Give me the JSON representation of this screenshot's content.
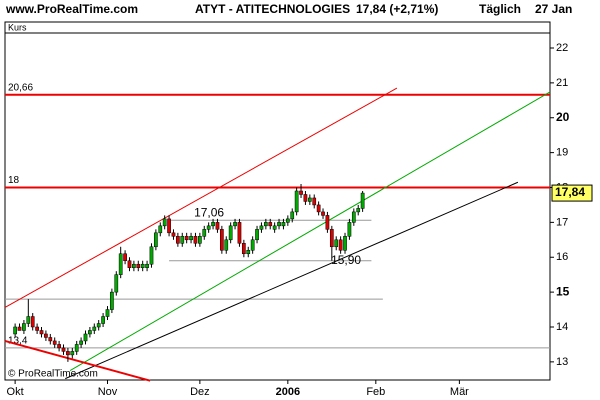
{
  "header": {
    "site": "www.ProRealTime.com",
    "instrument": "ATYT - ATITECHNOLOGIES",
    "quote": "17,84 (+2,71%)",
    "interval": "Täglich",
    "date": "27 Jan"
  },
  "chart_data": {
    "type": "candlestick",
    "panel_label": "Kurs",
    "copyright": "© ProRealTime.com",
    "up_color": "#00aa00",
    "down_color": "#dd0000",
    "x": [
      0,
      1,
      2,
      3,
      4,
      5,
      6,
      7,
      8,
      9,
      10,
      11,
      12,
      13,
      14,
      15,
      16,
      17,
      18,
      19,
      20,
      21,
      22,
      23,
      24,
      25,
      26,
      27,
      28,
      29,
      30,
      31,
      32,
      33,
      34,
      35,
      36,
      37,
      38,
      39,
      40,
      41,
      42,
      43,
      44,
      45,
      46,
      47,
      48,
      49,
      50,
      51,
      52,
      53,
      54,
      55,
      56,
      57,
      58,
      59,
      60,
      61,
      62,
      63,
      64,
      65,
      66,
      67,
      68,
      69,
      70,
      71,
      72,
      73,
      74,
      75,
      76,
      77,
      78,
      79
    ],
    "open": [
      13.8,
      14.0,
      13.9,
      14.1,
      14.3,
      14.0,
      13.9,
      13.8,
      13.7,
      13.6,
      13.5,
      13.4,
      13.3,
      13.2,
      13.3,
      13.5,
      13.6,
      13.8,
      13.9,
      14.0,
      14.1,
      14.3,
      14.5,
      15.0,
      15.5,
      16.1,
      15.9,
      15.7,
      15.8,
      15.7,
      15.7,
      15.8,
      16.3,
      16.7,
      16.9,
      17.1,
      16.7,
      16.6,
      16.4,
      16.6,
      16.5,
      16.6,
      16.4,
      16.6,
      16.8,
      16.9,
      17.0,
      16.8,
      16.2,
      16.5,
      16.9,
      17.0,
      16.4,
      16.1,
      16.2,
      16.5,
      16.8,
      16.9,
      17.0,
      16.8,
      16.9,
      16.9,
      17.0,
      17.1,
      17.3,
      17.9,
      17.8,
      17.6,
      17.7,
      17.5,
      17.3,
      17.2,
      16.8,
      16.3,
      16.5,
      16.2,
      16.6,
      17.0,
      17.3,
      17.4
    ],
    "high": [
      14.1,
      14.1,
      14.2,
      14.8,
      14.4,
      14.1,
      14.0,
      13.9,
      13.8,
      13.7,
      13.6,
      13.5,
      13.4,
      13.4,
      13.6,
      13.7,
      13.9,
      14.0,
      14.1,
      14.2,
      14.4,
      14.6,
      15.1,
      15.6,
      16.3,
      16.2,
      16.0,
      15.9,
      15.9,
      15.9,
      15.9,
      16.4,
      16.8,
      17.0,
      17.2,
      17.2,
      16.8,
      16.7,
      16.7,
      16.7,
      16.7,
      16.7,
      16.7,
      16.9,
      17.0,
      17.1,
      17.1,
      16.9,
      16.6,
      17.0,
      17.1,
      17.1,
      16.5,
      16.3,
      16.6,
      16.9,
      17.0,
      17.1,
      17.1,
      17.0,
      17.1,
      17.1,
      17.2,
      17.4,
      18.0,
      18.1,
      17.9,
      17.8,
      17.8,
      17.6,
      17.4,
      17.3,
      16.9,
      16.6,
      16.6,
      16.7,
      17.1,
      17.4,
      17.5,
      17.9
    ],
    "low": [
      13.7,
      13.9,
      13.8,
      14.0,
      13.9,
      13.8,
      13.7,
      13.6,
      13.5,
      13.4,
      13.3,
      13.2,
      13.0,
      13.1,
      13.2,
      13.4,
      13.5,
      13.7,
      13.8,
      13.9,
      14.0,
      14.2,
      14.4,
      14.9,
      15.4,
      15.8,
      15.6,
      15.6,
      15.6,
      15.6,
      15.6,
      15.7,
      16.2,
      16.6,
      16.8,
      16.6,
      16.5,
      16.3,
      16.3,
      16.4,
      16.4,
      16.3,
      16.3,
      16.5,
      16.7,
      16.8,
      16.7,
      16.1,
      16.1,
      16.4,
      16.8,
      16.3,
      16.0,
      16.0,
      16.1,
      16.4,
      16.7,
      16.8,
      16.8,
      16.7,
      16.8,
      16.8,
      16.9,
      17.0,
      17.2,
      17.7,
      17.5,
      17.5,
      17.4,
      17.2,
      17.1,
      16.7,
      15.9,
      16.2,
      16.1,
      16.1,
      16.5,
      16.9,
      17.2,
      17.3
    ],
    "close": [
      14.0,
      13.9,
      14.1,
      14.3,
      14.0,
      13.9,
      13.8,
      13.7,
      13.6,
      13.5,
      13.4,
      13.3,
      13.2,
      13.3,
      13.5,
      13.6,
      13.8,
      13.9,
      14.0,
      14.1,
      14.3,
      14.5,
      15.0,
      15.5,
      16.1,
      15.9,
      15.7,
      15.8,
      15.7,
      15.8,
      15.8,
      16.3,
      16.7,
      16.9,
      17.1,
      16.7,
      16.6,
      16.4,
      16.6,
      16.5,
      16.6,
      16.4,
      16.6,
      16.8,
      16.9,
      17.0,
      16.8,
      16.2,
      16.5,
      16.9,
      17.0,
      16.4,
      16.1,
      16.2,
      16.5,
      16.8,
      16.9,
      17.0,
      16.9,
      16.9,
      17.0,
      17.0,
      17.1,
      17.3,
      17.9,
      17.8,
      17.6,
      17.7,
      17.5,
      17.3,
      17.2,
      16.8,
      16.3,
      16.5,
      16.2,
      16.6,
      17.0,
      17.3,
      17.4,
      17.84
    ],
    "xlim": [
      -2.3,
      121.6
    ],
    "ylim": [
      12.48,
      22.43
    ],
    "xticks": [
      {
        "value": 0,
        "label": "Okt"
      },
      {
        "value": 21,
        "label": "Nov"
      },
      {
        "value": 42,
        "label": "Dez"
      },
      {
        "value": 62,
        "label": "2006"
      },
      {
        "value": 82,
        "label": "Feb"
      },
      {
        "value": 101,
        "label": "Mär"
      }
    ],
    "yticks": [
      13,
      14,
      15,
      16,
      17,
      18,
      19,
      20,
      21,
      22
    ],
    "levels": [
      {
        "value": 20.66,
        "label": "20,66",
        "color": "#ee0000",
        "start": -2.3,
        "end": 121.6
      },
      {
        "value": 18,
        "label": "18",
        "color": "#ee0000",
        "start": -2.3,
        "end": 121.6
      },
      {
        "value": 17.06,
        "label": "17,06",
        "color": "#999999",
        "start": 35,
        "end": 81
      },
      {
        "value": 15.9,
        "label": "15,90",
        "color": "#999999",
        "start": 35,
        "end": 81
      },
      {
        "value": 14.8,
        "color": "#999999",
        "start": -2.3,
        "end": 83.6
      },
      {
        "value": 13.4,
        "label": "13,4",
        "color": "#999999",
        "start": -2.3,
        "end": 121.6
      }
    ],
    "trendlines": [
      {
        "color": "#ee0000",
        "x": [
          -2.3,
          86.8
        ],
        "y": [
          14.56,
          20.85
        ]
      },
      {
        "color": "#00aa00",
        "x": [
          12.5,
          121.6
        ],
        "y": [
          12.75,
          20.74
        ]
      },
      {
        "color": "#000000",
        "x": [
          11.4,
          114.3
        ],
        "y": [
          12.52,
          18.15
        ]
      },
      {
        "color": "#ee0000",
        "x": [
          -2.3,
          30.7
        ],
        "y": [
          13.6,
          12.46
        ]
      }
    ],
    "last_price": {
      "value": 17.84,
      "label": "17,84"
    }
  }
}
